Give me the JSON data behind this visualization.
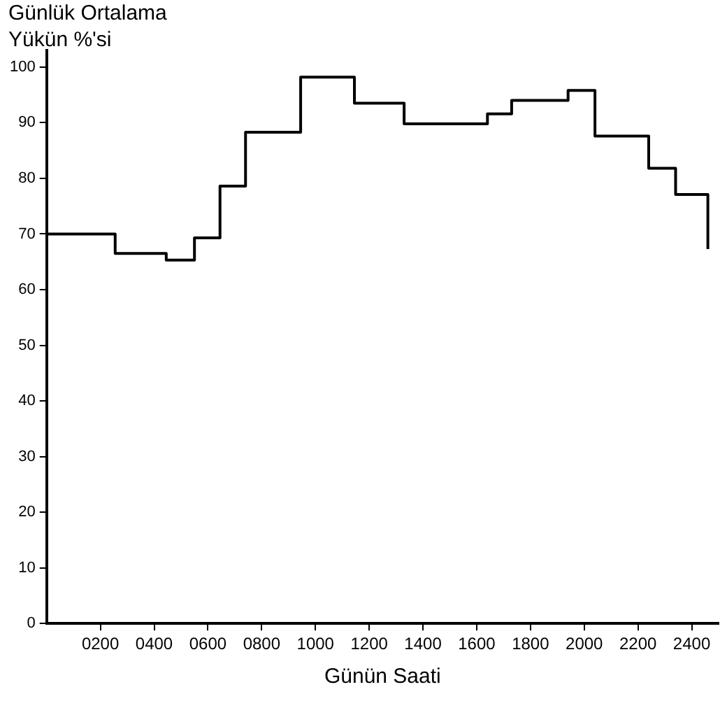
{
  "chart_data": {
    "type": "step",
    "ylabel": "Günlük Ortalama\nYükün %'si",
    "xlabel": "Günün Saati",
    "x": [
      0,
      255,
      445,
      550,
      645,
      740,
      945,
      1145,
      1330,
      1640,
      1730,
      1940,
      2040,
      2240,
      2340,
      2460
    ],
    "values": [
      70,
      66.5,
      65.3,
      69.3,
      78.6,
      88.3,
      98.2,
      93.5,
      89.8,
      91.6,
      94,
      95.8,
      87.6,
      81.8,
      77.1,
      67.3
    ],
    "color": "#000000",
    "xlim": [
      0,
      2500
    ],
    "xticks": [
      {
        "value": 200,
        "label": "0200"
      },
      {
        "value": 400,
        "label": "0400"
      },
      {
        "value": 600,
        "label": "0600"
      },
      {
        "value": 800,
        "label": "0800"
      },
      1000,
      1200,
      1400,
      1600,
      1800,
      2000,
      2200,
      2400
    ],
    "ylim": [
      0,
      103
    ],
    "yticks": [
      0,
      10,
      20,
      30,
      40,
      50,
      60,
      70,
      80,
      90,
      100
    ],
    "grid": false,
    "legend": false,
    "marker": "none",
    "line_style": "solid"
  }
}
